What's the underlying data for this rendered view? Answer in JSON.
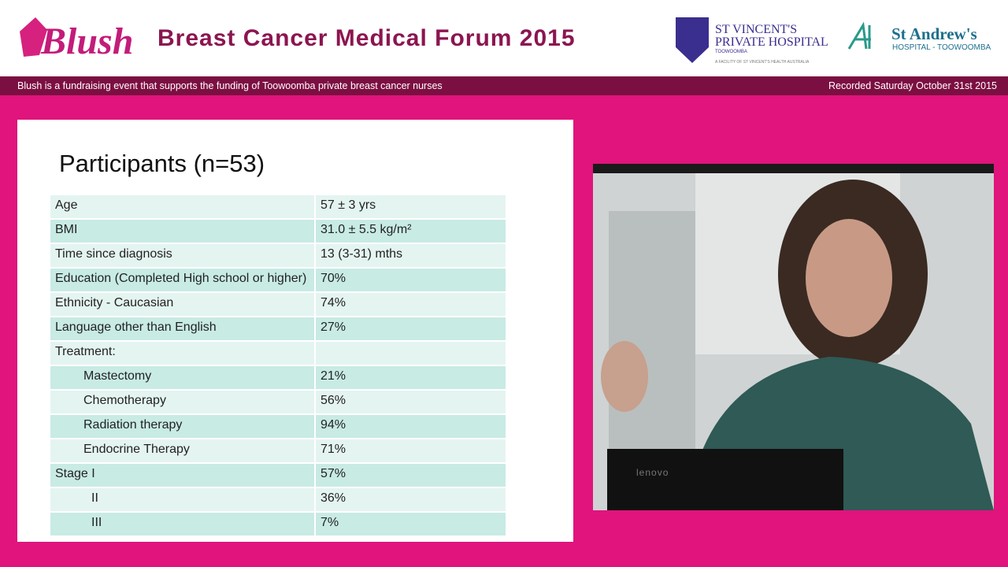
{
  "header": {
    "logo": "Blush",
    "title": "Breast Cancer Medical Forum 2015",
    "sponsor1": {
      "name": "ST VINCENT'S",
      "line2": "PRIVATE HOSPITAL",
      "line3": "TOOWOOMBA",
      "tagline": "A FACILITY OF ST VINCENT'S HEALTH AUSTRALIA"
    },
    "sponsor2": {
      "name": "St Andrew's",
      "line2": "HOSPITAL - TOOWOOMBA"
    }
  },
  "banner": {
    "left": "Blush is a fundraising event that supports the funding of Toowoomba private breast cancer nurses",
    "right": "Recorded Saturday October 31st 2015"
  },
  "slide": {
    "title": "Participants (n=53)",
    "table": {
      "rows": [
        [
          "Age",
          "57 ± 3 yrs"
        ],
        [
          "BMI",
          "31.0 ± 5.5 kg/m²"
        ],
        [
          "Time since diagnosis",
          "13 (3-31) mths"
        ],
        [
          "Education (Completed High school or higher)",
          "70%"
        ],
        [
          "Ethnicity - Caucasian",
          "74%"
        ],
        [
          "Language other than English",
          "27%"
        ],
        [
          "Treatment:"
        ],
        [
          "Mastectomy",
          "21%"
        ],
        [
          "Chemotherapy",
          "56%"
        ],
        [
          "Radiation  therapy",
          "94%"
        ],
        [
          "Endocrine Therapy",
          "71%"
        ],
        [
          "Stage I",
          "57%"
        ],
        [
          "II",
          "36%"
        ],
        [
          "III",
          "7%"
        ]
      ]
    }
  },
  "video": {
    "laptop_brand": "lenovo"
  }
}
